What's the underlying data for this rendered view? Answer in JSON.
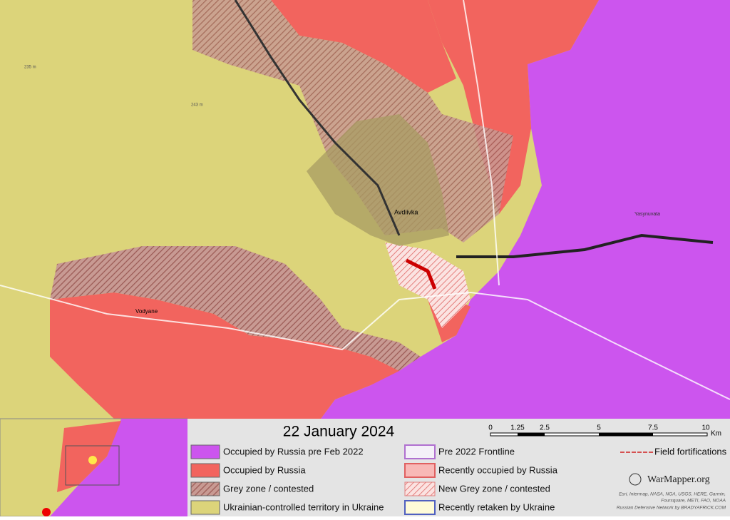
{
  "title": "22 January 2024",
  "scale": {
    "labels": [
      "0",
      "1.25",
      "2.5",
      "5",
      "7.5",
      "10"
    ],
    "unit": "Km"
  },
  "legend": {
    "left": [
      "Occupied by Russia pre Feb 2022",
      "Occupied by Russia",
      "Grey zone / contested",
      "Ukrainian-controlled territory in Ukraine"
    ],
    "right": [
      "Pre 2022 Frontline",
      "Recently occupied by Russia",
      "New Grey zone / contested",
      "Recently retaken by Ukraine"
    ],
    "extra": "Field fortifications"
  },
  "brand": "WarMapper.org",
  "attribution": [
    "Esri, Intermap, NASA, NGA, USGS, HERE, Garmin,",
    "Foursquare, METI, FAO, NOAA",
    "Russian Defensive Network by BRADYAFRICK.COM"
  ],
  "places": [
    "Avdiivka",
    "Vodyane",
    "Yasynuvata",
    "235 m",
    "243 m"
  ]
}
